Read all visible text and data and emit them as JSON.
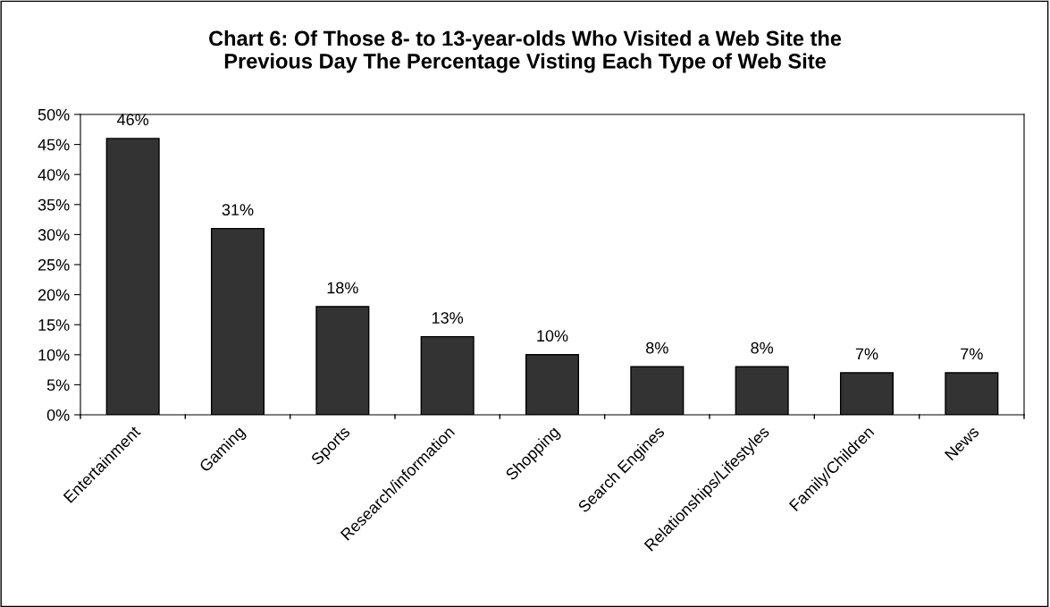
{
  "chart_data": {
    "type": "bar",
    "title": "Chart 6: Of Those 8- to 13-year-olds Who Visited a Web Site the\nPrevious Day The Percentage Visting Each Type of Web Site",
    "categories": [
      "Entertainment",
      "Gaming",
      "Sports",
      "Research/information",
      "Shopping",
      "Search Engines",
      "Relationships/Lifestyles",
      "Family/Children",
      "News"
    ],
    "values": [
      46,
      31,
      18,
      13,
      10,
      8,
      8,
      7,
      7
    ],
    "value_labels": [
      "46%",
      "31%",
      "18%",
      "13%",
      "10%",
      "8%",
      "8%",
      "7%",
      "7%"
    ],
    "color": "#333333",
    "ylim": [
      0,
      50
    ],
    "yticks": [
      {
        "value": 0,
        "label": "0%"
      },
      {
        "value": 5,
        "label": "5%"
      },
      {
        "value": 10,
        "label": "10%"
      },
      {
        "value": 15,
        "label": "15%"
      },
      {
        "value": 20,
        "label": "20%"
      },
      {
        "value": 25,
        "label": "25%"
      },
      {
        "value": 30,
        "label": "30%"
      },
      {
        "value": 35,
        "label": "35%"
      },
      {
        "value": 40,
        "label": "40%"
      },
      {
        "value": 45,
        "label": "45%"
      },
      {
        "value": 50,
        "label": "50%"
      }
    ],
    "grid": false,
    "legend": false
  }
}
